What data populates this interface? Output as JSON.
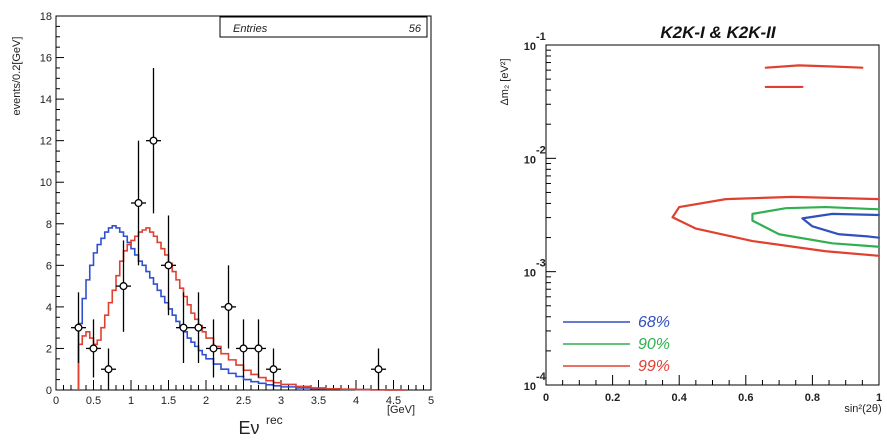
{
  "chart_data": [
    {
      "type": "histogram",
      "stats_box": {
        "label": "Entries",
        "value": "56"
      },
      "xlabel": "Eν",
      "xlabel_sup": "rec",
      "xunit": "[GeV]",
      "ylabel": "events/0.2[GeV]",
      "xlim": [
        0,
        5
      ],
      "ylim": [
        0,
        18
      ],
      "xticks": [
        "0",
        "0.5",
        "1",
        "1.5",
        "2",
        "2.5",
        "3",
        "3.5",
        "4",
        "4.5",
        "5"
      ],
      "yticks": [
        "0",
        "2",
        "4",
        "6",
        "8",
        "10",
        "12",
        "14",
        "16",
        "18"
      ],
      "data_points": [
        {
          "x": 0.3,
          "y": 3,
          "err": 1.7
        },
        {
          "x": 0.5,
          "y": 2,
          "err": 1.4
        },
        {
          "x": 0.7,
          "y": 1,
          "err": 1.0
        },
        {
          "x": 0.9,
          "y": 5,
          "err": 2.2
        },
        {
          "x": 1.1,
          "y": 9,
          "err": 3.0
        },
        {
          "x": 1.3,
          "y": 12,
          "err": 3.5
        },
        {
          "x": 1.5,
          "y": 6,
          "err": 2.4
        },
        {
          "x": 1.7,
          "y": 3,
          "err": 1.7
        },
        {
          "x": 1.9,
          "y": 3,
          "err": 1.7
        },
        {
          "x": 2.1,
          "y": 2,
          "err": 1.4
        },
        {
          "x": 2.3,
          "y": 4,
          "err": 2.0
        },
        {
          "x": 2.5,
          "y": 2,
          "err": 1.4
        },
        {
          "x": 2.7,
          "y": 2,
          "err": 1.4
        },
        {
          "x": 2.9,
          "y": 1,
          "err": 1.0
        },
        {
          "x": 4.3,
          "y": 1,
          "err": 1.0
        }
      ],
      "series": [
        {
          "color": "#3050d0",
          "x": [
            0.3,
            0.35,
            0.4,
            0.45,
            0.5,
            0.55,
            0.6,
            0.65,
            0.7,
            0.75,
            0.8,
            0.85,
            0.9,
            0.95,
            1.0,
            1.05,
            1.1,
            1.15,
            1.2,
            1.25,
            1.3,
            1.35,
            1.4,
            1.45,
            1.5,
            1.55,
            1.6,
            1.65,
            1.7,
            1.75,
            1.8,
            1.85,
            1.9,
            1.95,
            2.0,
            2.1,
            2.2,
            2.3,
            2.4,
            2.5,
            2.6,
            2.7,
            2.8,
            2.9,
            3.0,
            3.2,
            3.4,
            3.6,
            3.8,
            4.0,
            4.2,
            4.4,
            4.6
          ],
          "y": [
            3.2,
            4.4,
            5.3,
            6.0,
            6.6,
            7.0,
            7.3,
            7.6,
            7.8,
            7.9,
            7.8,
            7.6,
            7.4,
            7.1,
            6.8,
            6.5,
            6.2,
            6.0,
            5.7,
            5.4,
            5.1,
            4.8,
            4.5,
            4.2,
            3.9,
            3.6,
            3.3,
            3.0,
            2.8,
            2.5,
            2.3,
            2.1,
            1.9,
            1.7,
            1.5,
            1.25,
            1.0,
            0.8,
            0.65,
            0.5,
            0.4,
            0.32,
            0.25,
            0.2,
            0.15,
            0.1,
            0.07,
            0.05,
            0.03,
            0.02,
            0.01,
            0.005,
            0.0
          ]
        },
        {
          "color": "#e04030",
          "x": [
            0.3,
            0.35,
            0.4,
            0.45,
            0.5,
            0.55,
            0.6,
            0.65,
            0.7,
            0.75,
            0.8,
            0.85,
            0.9,
            0.95,
            1.0,
            1.05,
            1.1,
            1.15,
            1.2,
            1.25,
            1.3,
            1.35,
            1.4,
            1.45,
            1.5,
            1.55,
            1.6,
            1.65,
            1.7,
            1.75,
            1.8,
            1.85,
            1.9,
            1.95,
            2.0,
            2.1,
            2.2,
            2.3,
            2.4,
            2.5,
            2.6,
            2.7,
            2.8,
            2.9,
            3.0,
            3.2,
            3.4,
            3.6,
            3.8,
            4.0,
            4.2,
            4.4,
            4.6
          ],
          "y": [
            2.2,
            2.6,
            2.8,
            2.5,
            2.2,
            2.4,
            3.0,
            3.6,
            4.2,
            4.8,
            5.5,
            6.2,
            6.7,
            7.0,
            7.2,
            7.4,
            7.6,
            7.7,
            7.8,
            7.6,
            7.4,
            7.1,
            6.8,
            6.5,
            6.1,
            5.7,
            5.3,
            4.9,
            4.5,
            4.1,
            3.7,
            3.4,
            3.1,
            2.8,
            2.5,
            2.1,
            1.75,
            1.45,
            1.2,
            0.95,
            0.75,
            0.6,
            0.45,
            0.35,
            0.27,
            0.17,
            0.1,
            0.06,
            0.04,
            0.02,
            0.01,
            0.005,
            0.0
          ]
        }
      ]
    },
    {
      "type": "contour",
      "title": "K2K-I & K2K-II",
      "xlabel": "sin²(2θ)",
      "ylabel": "Δm₂ [eV²]",
      "xlim": [
        0,
        1
      ],
      "ylim_log10": [
        -4,
        -1
      ],
      "xticks": [
        "0",
        "0.2",
        "0.4",
        "0.6",
        "0.8",
        "1"
      ],
      "yticks": [
        {
          "base": "10",
          "exp": "-1",
          "log10": -1
        },
        {
          "base": "10",
          "exp": "-2",
          "log10": -2
        },
        {
          "base": "10",
          "exp": "-3",
          "log10": -3
        },
        {
          "base": "10",
          "exp": "-4",
          "log10": -4
        }
      ],
      "contours": [
        {
          "label": "68%",
          "color": "#3050c0",
          "x": [
            1.0,
            0.86,
            0.77,
            0.8,
            0.88,
            0.97,
            1.0
          ],
          "log10y": [
            -2.5,
            -2.49,
            -2.53,
            -2.6,
            -2.67,
            -2.69,
            -2.7
          ]
        },
        {
          "label": "90%",
          "color": "#30b050",
          "x": [
            1.0,
            0.84,
            0.72,
            0.62,
            0.62,
            0.7,
            0.86,
            1.0
          ],
          "log10y": [
            -2.45,
            -2.43,
            -2.44,
            -2.49,
            -2.55,
            -2.67,
            -2.75,
            -2.78
          ]
        },
        {
          "label": "99%",
          "color": "#e04030",
          "x": [
            1.0,
            0.74,
            0.54,
            0.4,
            0.38,
            0.45,
            0.62,
            0.84,
            1.0
          ],
          "log10y": [
            -2.36,
            -2.34,
            -2.36,
            -2.43,
            -2.52,
            -2.62,
            -2.73,
            -2.82,
            -2.86
          ]
        },
        {
          "label": "99%",
          "color": "#e04030",
          "x": [
            0.66,
            0.76,
            0.86,
            0.95
          ],
          "log10y": [
            -1.2,
            -1.18,
            -1.19,
            -1.2
          ]
        },
        {
          "label": "99%",
          "color": "#e04030",
          "x": [
            0.66,
            0.72,
            0.77
          ],
          "log10y": [
            -1.37,
            -1.37,
            -1.37
          ]
        }
      ],
      "legend": [
        {
          "label": "68%",
          "color": "#3050c0"
        },
        {
          "label": "90%",
          "color": "#30b050"
        },
        {
          "label": "99%",
          "color": "#e04030"
        }
      ]
    }
  ]
}
